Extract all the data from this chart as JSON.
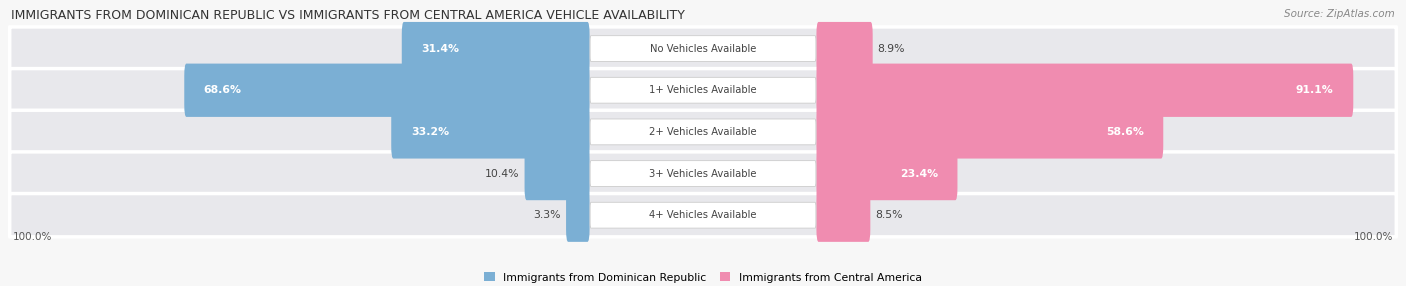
{
  "title": "IMMIGRANTS FROM DOMINICAN REPUBLIC VS IMMIGRANTS FROM CENTRAL AMERICA VEHICLE AVAILABILITY",
  "source": "Source: ZipAtlas.com",
  "categories": [
    "No Vehicles Available",
    "1+ Vehicles Available",
    "2+ Vehicles Available",
    "3+ Vehicles Available",
    "4+ Vehicles Available"
  ],
  "dominican_values": [
    31.4,
    68.6,
    33.2,
    10.4,
    3.3
  ],
  "central_america_values": [
    8.9,
    91.1,
    58.6,
    23.4,
    8.5
  ],
  "dominican_color": "#7bafd4",
  "dominican_color_dark": "#5a9ec9",
  "central_america_color": "#f08cb0",
  "central_america_color_dark": "#e0609a",
  "row_bg_color": "#e8e8ec",
  "total_label": "100.0%",
  "legend_dominican": "Immigrants from Dominican Republic",
  "legend_central": "Immigrants from Central America",
  "fig_bg": "#f7f7f7"
}
